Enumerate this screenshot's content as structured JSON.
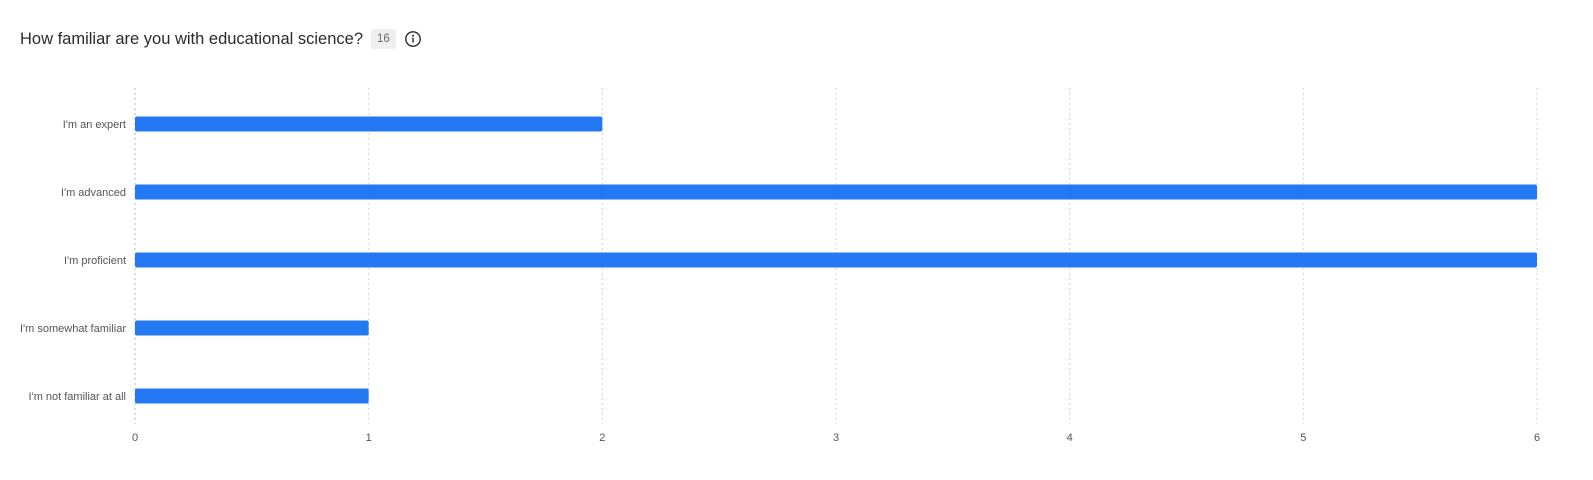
{
  "question": {
    "title": "How familiar are you with educational science?",
    "responses": "16",
    "info_icon": "info-circle-icon"
  },
  "colors": {
    "bar": "#2478f4",
    "grid": "#cfd3d8",
    "text": "#555555"
  },
  "chart_data": {
    "type": "bar",
    "orientation": "horizontal",
    "categories": [
      "I'm an expert",
      "I'm advanced",
      "I'm proficient",
      "I'm somewhat familiar",
      "I'm not familiar at all"
    ],
    "values": [
      2,
      6,
      6,
      1,
      1
    ],
    "xlim": [
      0,
      6
    ],
    "xticks": [
      "0",
      "1",
      "2",
      "3",
      "4",
      "5",
      "6"
    ],
    "grid": "vertical-dotted",
    "legend": "none"
  }
}
